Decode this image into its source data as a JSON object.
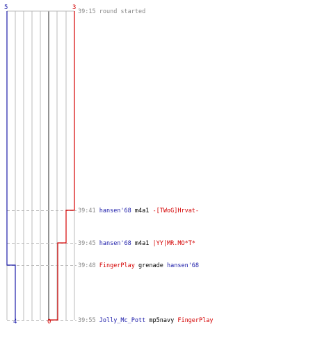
{
  "colors": {
    "team_a": "#1a1aa8",
    "team_b": "#d40000",
    "grid": "#bbbbbb",
    "guide": "#bbbbbb",
    "center": "#777777",
    "time": "#888888"
  },
  "counts": {
    "team_a_start": "5",
    "team_b_start": "3",
    "team_a_end": "4",
    "team_b_end": "0"
  },
  "events": [
    {
      "time": "39:15",
      "text": "round started"
    },
    {
      "time": "39:41",
      "killer": "hansen'68",
      "weapon": "m4a1",
      "victim": "-[TWoG]Hrvat-",
      "killer_team": "a",
      "victim_team": "b",
      "a_after": 5,
      "b_after": 2
    },
    {
      "time": "39:45",
      "killer": "hansen'68",
      "weapon": "m4a1",
      "victim": "|YY|MR.MO*T*",
      "killer_team": "a",
      "victim_team": "b",
      "a_after": 5,
      "b_after": 1
    },
    {
      "time": "39:48",
      "killer": "FingerPlay",
      "weapon": "grenade",
      "victim": "hansen'68",
      "killer_team": "b",
      "victim_team": "a",
      "a_after": 4,
      "b_after": 1
    },
    {
      "time": "39:55",
      "killer": "Jolly_Mc_Pott",
      "weapon": "mp5navy",
      "victim": "FingerPlay",
      "killer_team": "a",
      "victim_team": "b",
      "a_after": 4,
      "b_after": 0
    }
  ]
}
